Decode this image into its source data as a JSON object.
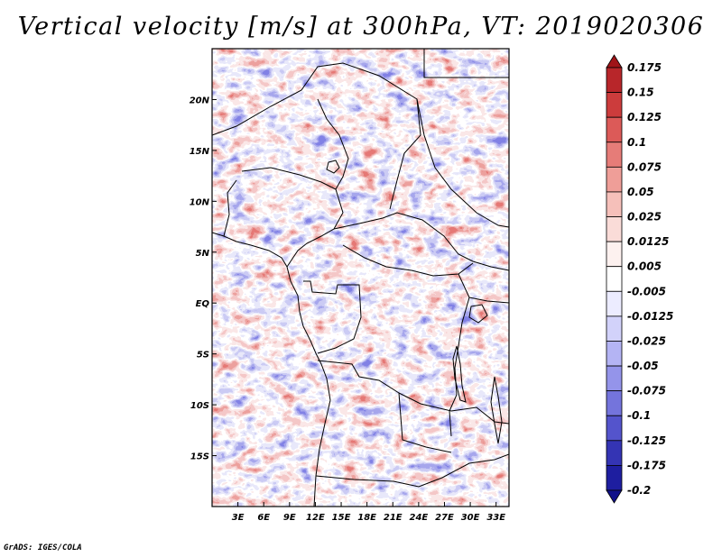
{
  "title": "Vertical velocity [m/s] at 300hPa, VT: 2019020306",
  "footer": "GrADS: IGES/COLA",
  "map": {
    "lon_range": [
      0,
      34.5
    ],
    "lat_range": [
      -20,
      25
    ],
    "lon_ticks": [
      "3E",
      "6E",
      "9E",
      "12E",
      "15E",
      "18E",
      "21E",
      "24E",
      "27E",
      "30E",
      "33E"
    ],
    "lat_ticks": [
      "20N",
      "15N",
      "10N",
      "5N",
      "EQ",
      "5S",
      "10S",
      "15S"
    ],
    "field": "vertical velocity",
    "level": "300hPa"
  },
  "colorbar": {
    "labels": [
      "0.175",
      "0.15",
      "0.125",
      "0.1",
      "0.075",
      "0.05",
      "0.025",
      "0.0125",
      "0.005",
      "-0.005",
      "-0.0125",
      "-0.025",
      "-0.05",
      "-0.075",
      "-0.1",
      "-0.125",
      "-0.175",
      "-0.2"
    ],
    "colors": [
      "#a01418",
      "#b8262a",
      "#cc3c3c",
      "#dc5a58",
      "#e67c78",
      "#ef9e98",
      "#f6c0ba",
      "#fadcd8",
      "#fdf1ef",
      "#ffffff",
      "#ececff",
      "#d2d2fa",
      "#b4b4f4",
      "#9494ea",
      "#7474dc",
      "#5454cc",
      "#3434b4",
      "#1e1ea0",
      "#10108a"
    ]
  }
}
